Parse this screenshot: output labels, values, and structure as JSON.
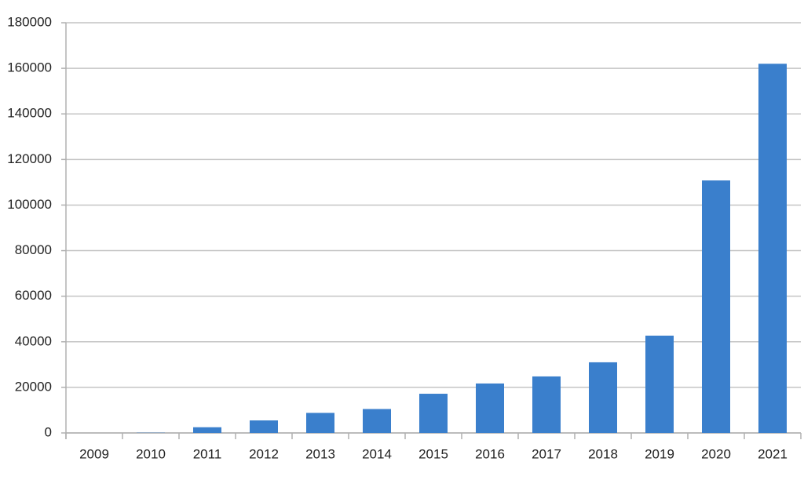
{
  "chart_data": {
    "type": "bar",
    "categories": [
      "2009",
      "2010",
      "2011",
      "2012",
      "2013",
      "2014",
      "2015",
      "2016",
      "2017",
      "2018",
      "2019",
      "2020",
      "2021"
    ],
    "values": [
      0,
      100,
      2500,
      5500,
      8800,
      10500,
      17200,
      21700,
      24800,
      31000,
      42700,
      110800,
      162000
    ],
    "color": "#3a7fcc",
    "ylim": [
      0,
      180000
    ],
    "yticks": [
      0,
      20000,
      40000,
      60000,
      80000,
      100000,
      120000,
      140000,
      160000,
      180000
    ],
    "grid": true
  }
}
